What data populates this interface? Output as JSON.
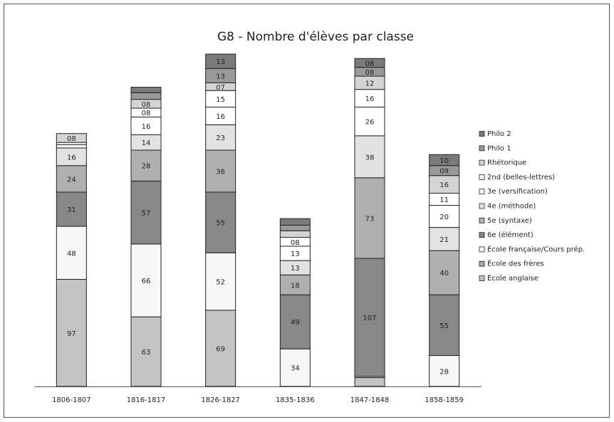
{
  "chart_data": {
    "type": "stacked-bar",
    "title": "G8 - Nombre d'élèves par classe",
    "categories": [
      "1806-1807",
      "1816-1817",
      "1826-1827",
      "1835-1836",
      "1847-1848",
      "1858-1859"
    ],
    "series": [
      {
        "name": "École anglaise",
        "color": "#c4c4c4",
        "values": [
          97,
          63,
          69,
          0,
          8,
          0
        ],
        "value_labels": [
          "97",
          "63",
          "69",
          null,
          null,
          null
        ]
      },
      {
        "name": "École des frères",
        "color": "#a6a6a6",
        "values": [
          0,
          0,
          0,
          0,
          0,
          0
        ],
        "value_labels": [
          null,
          null,
          null,
          null,
          null,
          null
        ]
      },
      {
        "name": "École française/Cours prép.",
        "color": "#f7f7f7",
        "values": [
          48,
          66,
          52,
          34,
          1,
          28
        ],
        "value_labels": [
          "48",
          "66",
          "52",
          "34",
          null,
          "28"
        ]
      },
      {
        "name": "6e (élément)",
        "color": "#888888",
        "values": [
          31,
          57,
          55,
          49,
          107,
          55
        ],
        "value_labels": [
          "31",
          "57",
          "55",
          "49",
          "107",
          "55"
        ]
      },
      {
        "name": "5e (syntaxe)",
        "color": "#b0b0b0",
        "values": [
          24,
          28,
          38,
          18,
          73,
          40
        ],
        "value_labels": [
          "24",
          "28",
          "38",
          "18",
          "73",
          "40"
        ]
      },
      {
        "name": "4e (méthode)",
        "color": "#e2e2e2",
        "values": [
          16,
          14,
          23,
          13,
          38,
          21
        ],
        "value_labels": [
          "16",
          "14",
          "23",
          "13",
          "38",
          "21"
        ]
      },
      {
        "name": "3e (versification)",
        "color": "#ffffff",
        "values": [
          3,
          16,
          16,
          13,
          26,
          20
        ],
        "value_labels": [
          null,
          "16",
          "16",
          "13",
          "26",
          "20"
        ]
      },
      {
        "name": "2nd (belles-lettres)",
        "color": "#ffffff",
        "values": [
          2,
          8,
          15,
          8,
          16,
          11
        ],
        "value_labels": [
          null,
          "08",
          "15",
          "08",
          "16",
          "11"
        ]
      },
      {
        "name": "Rhétorique",
        "color": "#d4d4d4",
        "values": [
          8,
          8,
          7,
          6,
          12,
          16
        ],
        "value_labels": [
          "08",
          "08",
          "07",
          null,
          "12",
          "16"
        ]
      },
      {
        "name": "Philo 1",
        "color": "#999999",
        "values": [
          0,
          6,
          13,
          5,
          8,
          9
        ],
        "value_labels": [
          null,
          null,
          "13",
          null,
          "08",
          "09"
        ]
      },
      {
        "name": "Philo 2",
        "color": "#7a7a7a",
        "values": [
          0,
          5,
          13,
          6,
          8,
          10
        ],
        "value_labels": [
          null,
          null,
          "13",
          null,
          "08",
          "10"
        ]
      }
    ]
  }
}
